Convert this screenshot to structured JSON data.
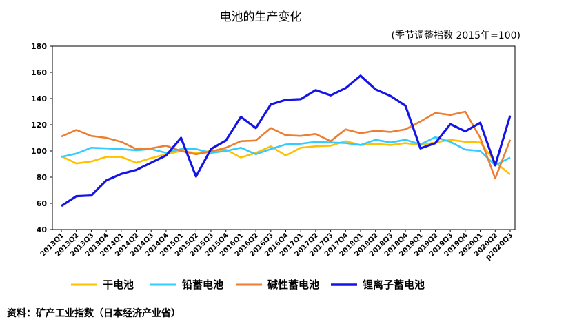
{
  "chart_data": {
    "type": "line",
    "title": "电池的生产变化",
    "subtitle": "(季节调整指数 2015年=100)",
    "source": "资料：矿产工业指数（日本经济产业省）",
    "ylim": [
      40,
      180
    ],
    "yticks": [
      40,
      60,
      80,
      100,
      120,
      140,
      160,
      180
    ],
    "grid": false,
    "legend_position": "bottom",
    "categories": [
      "2013Q1",
      "2013Q2",
      "2013Q3",
      "2013Q4",
      "2014Q1",
      "2014Q2",
      "2014Q3",
      "2014Q4",
      "2015Q1",
      "2015Q2",
      "2015Q3",
      "2015Q4",
      "2016Q1",
      "2016Q2",
      "2016Q3",
      "2016Q4",
      "2017Q1",
      "2017Q2",
      "2017Q3",
      "2017Q4",
      "2018Q1",
      "2018Q2",
      "2018Q3",
      "2018Q4",
      "2019Q1",
      "2019Q2",
      "2019Q3",
      "2019Q4",
      "2020Q1",
      "2020Q2",
      "p2020Q3"
    ],
    "series": [
      {
        "name": "干电池",
        "color": "#FFC000",
        "values": [
          96,
          90.5,
          92,
          95.5,
          95.5,
          91,
          94.5,
          97.5,
          100,
          98.5,
          100,
          101,
          95,
          98.5,
          103.5,
          96.5,
          102.5,
          103.5,
          104,
          107.5,
          104.5,
          105.5,
          104.5,
          106,
          104.5,
          106.5,
          108.5,
          107,
          106.5,
          91.5,
          82
        ]
      },
      {
        "name": "铅蓄电池",
        "color": "#33CCFF",
        "values": [
          95.5,
          98,
          102.5,
          102,
          101.5,
          100.5,
          101.5,
          98.5,
          101.5,
          101.5,
          98.5,
          100,
          102.5,
          97.5,
          101.5,
          105,
          105.5,
          107,
          106.5,
          106,
          104.5,
          108.5,
          106.5,
          108.5,
          105,
          110.5,
          107,
          101,
          100,
          89,
          95
        ]
      },
      {
        "name": "碱性蓄电池",
        "color": "#ED7D31",
        "values": [
          111,
          116,
          111.5,
          110,
          107,
          101.5,
          102,
          104,
          100,
          97.5,
          99.5,
          102.5,
          107.5,
          108,
          117.5,
          112,
          111.5,
          113,
          107.5,
          116.5,
          113.5,
          115.5,
          114.5,
          116.5,
          122.5,
          129,
          127.5,
          130,
          110,
          79,
          108.5
        ]
      },
      {
        "name": "锂离子蓄电池",
        "color": "#1414E6",
        "values": [
          58,
          65.5,
          66,
          77.5,
          82.5,
          85.5,
          91,
          96.5,
          110,
          80.5,
          101.5,
          108,
          126,
          117.5,
          135.5,
          139,
          139.5,
          146.5,
          142.5,
          148,
          157.5,
          147,
          142,
          134.5,
          102,
          106,
          120.5,
          115,
          121.5,
          89,
          127
        ]
      }
    ]
  }
}
